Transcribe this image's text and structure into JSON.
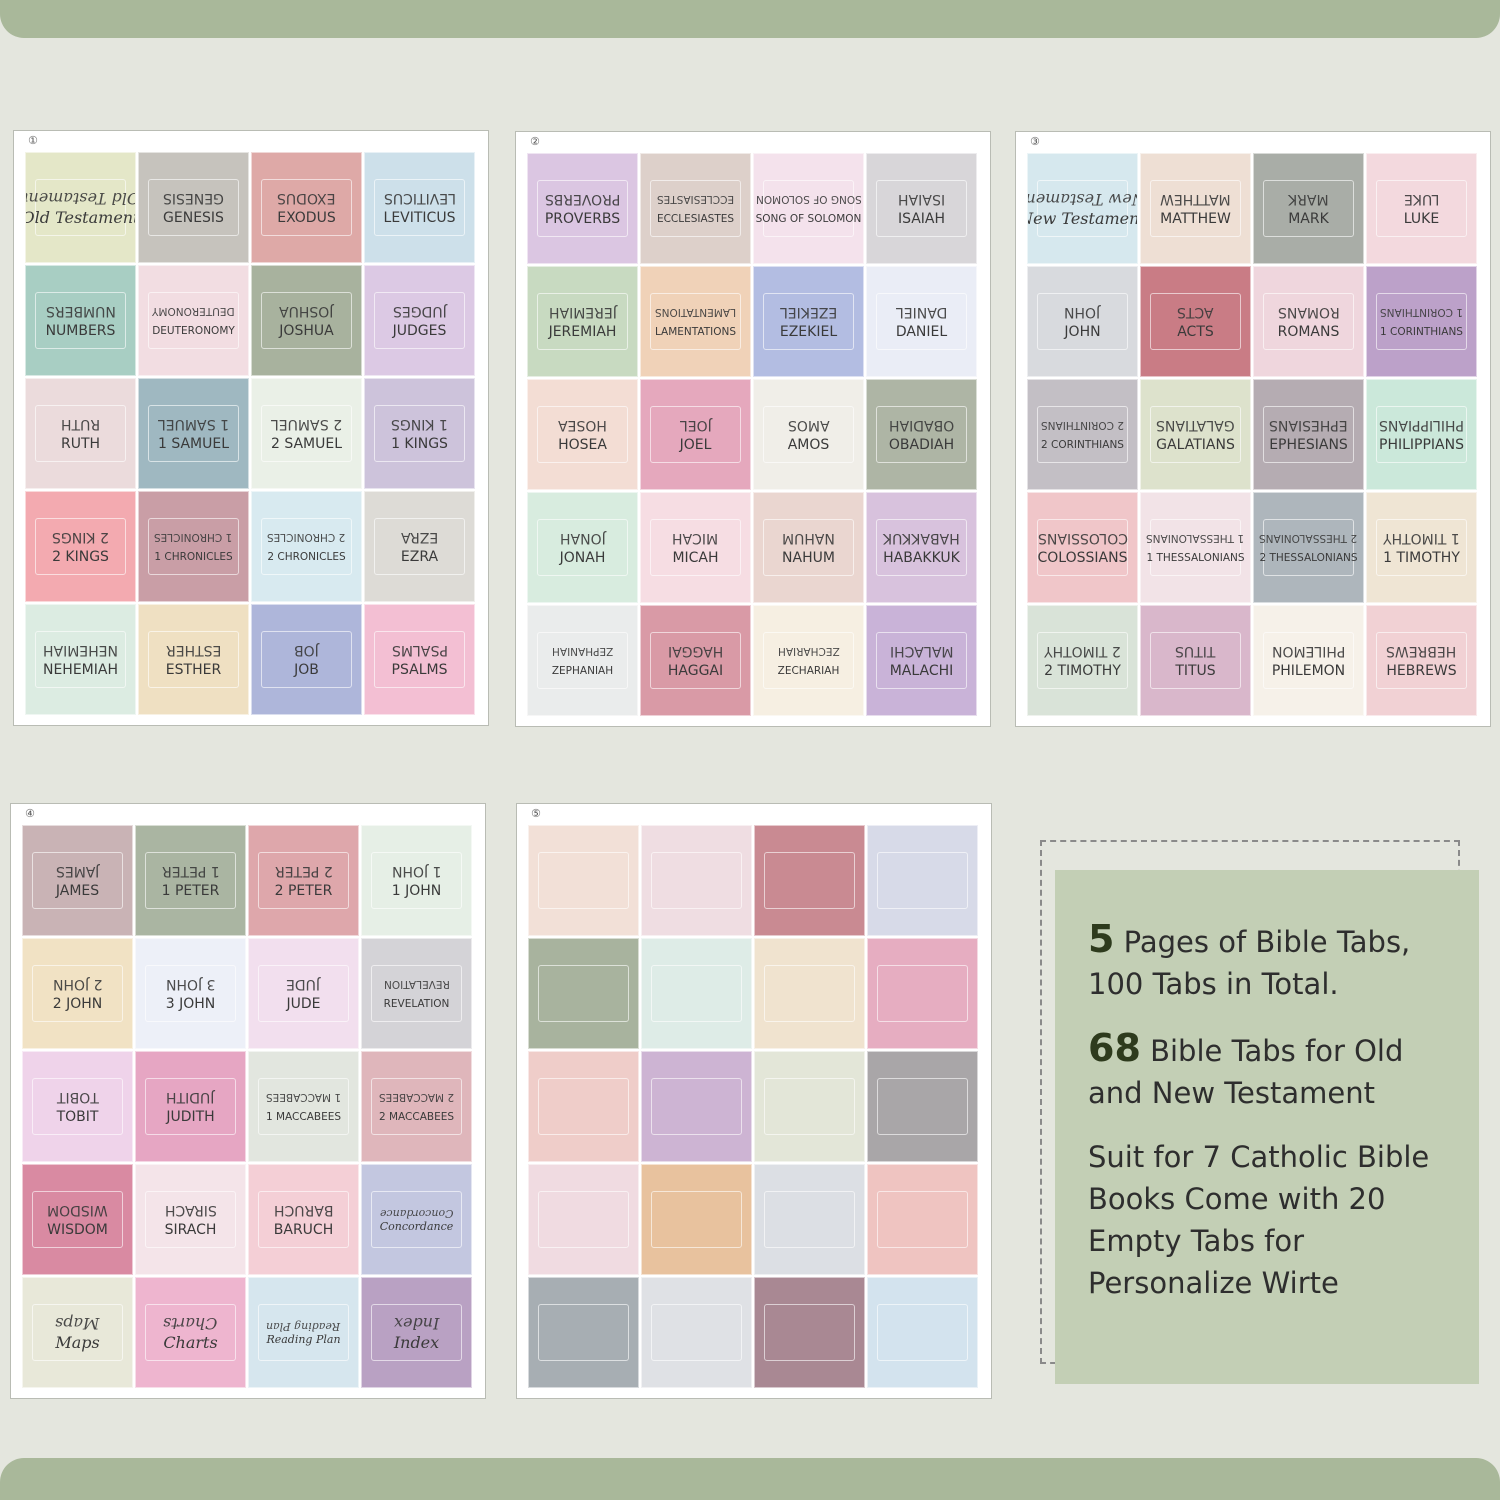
{
  "sheets": [
    {
      "num": "①",
      "tabs": [
        {
          "text": "Old Testament",
          "color": "#e4e7c8",
          "style": "script"
        },
        {
          "text": "GENESIS",
          "color": "#c6c3bd"
        },
        {
          "text": "EXODUS",
          "color": "#dea9a7"
        },
        {
          "text": "LEVITICUS",
          "color": "#cde0ea"
        },
        {
          "text": "NUMBERS",
          "color": "#a8cec3"
        },
        {
          "text": "DEUTERONOMY",
          "color": "#f2dde2",
          "style": "small"
        },
        {
          "text": "JOSHUA",
          "color": "#a8b29e"
        },
        {
          "text": "JUDGES",
          "color": "#dcc9e4"
        },
        {
          "text": "RUTH",
          "color": "#ebdbdc"
        },
        {
          "text": "1 SAMUEL",
          "color": "#9fb8c1"
        },
        {
          "text": "2 SAMUEL",
          "color": "#eaf0e7"
        },
        {
          "text": "1 KINGS",
          "color": "#cdc3db"
        },
        {
          "text": "2 KINGS",
          "color": "#f3aab0"
        },
        {
          "text": "1 CHRONICLES",
          "color": "#c99ea6",
          "style": "small"
        },
        {
          "text": "2 CHRONICLES",
          "color": "#d8eaf0",
          "style": "small"
        },
        {
          "text": "EZRA",
          "color": "#dddbd6"
        },
        {
          "text": "NEHEMIAH",
          "color": "#dcece2"
        },
        {
          "text": "ESTHER",
          "color": "#efe0c2"
        },
        {
          "text": "JOB",
          "color": "#aeb6da"
        },
        {
          "text": "PSALMS",
          "color": "#f3bfd3"
        }
      ]
    },
    {
      "num": "②",
      "tabs": [
        {
          "text": "PROVERBS",
          "color": "#dbc6e2"
        },
        {
          "text": "ECCLESIASTES",
          "color": "#ddd0ca",
          "style": "small"
        },
        {
          "text": "SONG OF SOLOMON",
          "color": "#f4e2ec",
          "style": "small"
        },
        {
          "text": "ISAIAH",
          "color": "#d8d6d9"
        },
        {
          "text": "JEREMIAH",
          "color": "#c8dac1"
        },
        {
          "text": "LAMENTATIONS",
          "color": "#f0d2b8",
          "style": "small"
        },
        {
          "text": "EZEKIEL",
          "color": "#b3bde2"
        },
        {
          "text": "DANIEL",
          "color": "#eaedf6"
        },
        {
          "text": "HOSEA",
          "color": "#f3ddd4"
        },
        {
          "text": "JOEL",
          "color": "#e5a8bd"
        },
        {
          "text": "AMOS",
          "color": "#f0eee8"
        },
        {
          "text": "OBADIAH",
          "color": "#aeb5a5"
        },
        {
          "text": "JONAH",
          "color": "#d8ecdf"
        },
        {
          "text": "MICAH",
          "color": "#f6dde3"
        },
        {
          "text": "NAHUM",
          "color": "#ead6d0"
        },
        {
          "text": "HABAKKUK",
          "color": "#d8c2dd"
        },
        {
          "text": "ZEPHANIAH",
          "color": "#eaecec",
          "style": "small"
        },
        {
          "text": "HAGGAI",
          "color": "#d99aa6"
        },
        {
          "text": "ZECHARIAH",
          "color": "#f6efe2",
          "style": "small"
        },
        {
          "text": "MALACHI",
          "color": "#c9b3d8"
        }
      ]
    },
    {
      "num": "③",
      "tabs": [
        {
          "text": "New Testament",
          "color": "#d6e8ee",
          "style": "script"
        },
        {
          "text": "MATTHEW",
          "color": "#eedfd4"
        },
        {
          "text": "MARK",
          "color": "#a9ada7"
        },
        {
          "text": "LUKE",
          "color": "#f3d9de"
        },
        {
          "text": "JOHN",
          "color": "#d8dade"
        },
        {
          "text": "ACTS",
          "color": "#c97c85"
        },
        {
          "text": "ROMANS",
          "color": "#efd6dd"
        },
        {
          "text": "1 CORINTHIANS",
          "color": "#bca1c9",
          "style": "small"
        },
        {
          "text": "2 CORINTHIANS",
          "color": "#c3bfc5",
          "style": "small"
        },
        {
          "text": "GALATIANS",
          "color": "#dde2cc"
        },
        {
          "text": "EPHESIANS",
          "color": "#b5acb2"
        },
        {
          "text": "PHILIPPIANS",
          "color": "#cbe8da"
        },
        {
          "text": "COLOSSIANS",
          "color": "#f0c6c9"
        },
        {
          "text": "1 THESSALONIANS",
          "color": "#f2e3e7",
          "style": "small"
        },
        {
          "text": "2 THESSALONIANS",
          "color": "#aeb6bc",
          "style": "small"
        },
        {
          "text": "1 TIMOTHY",
          "color": "#efe5d4"
        },
        {
          "text": "2 TIMOTHY",
          "color": "#d9e3d8"
        },
        {
          "text": "TITUS",
          "color": "#d9b7cb"
        },
        {
          "text": "PHILEMON",
          "color": "#f6f1e9"
        },
        {
          "text": "HEBREWS",
          "color": "#f1d1d4"
        }
      ]
    },
    {
      "num": "④",
      "tabs": [
        {
          "text": "JAMES",
          "color": "#c9b3b5"
        },
        {
          "text": "1 PETER",
          "color": "#aab5a2"
        },
        {
          "text": "2 PETER",
          "color": "#dea7ab"
        },
        {
          "text": "1 JOHN",
          "color": "#e6efe6"
        },
        {
          "text": "2 JOHN",
          "color": "#f1e2c4"
        },
        {
          "text": "3 JOHN",
          "color": "#edf0f8"
        },
        {
          "text": "JUDE",
          "color": "#f2dfee"
        },
        {
          "text": "REVELATION",
          "color": "#d4d3d7",
          "style": "small"
        },
        {
          "text": "TOBIT",
          "color": "#efd3ea"
        },
        {
          "text": "JUDITH",
          "color": "#e6a6c3"
        },
        {
          "text": "1 MACCABEES",
          "color": "#e2e6df",
          "style": "small"
        },
        {
          "text": "2 MACCABEES",
          "color": "#dfb6bb",
          "style": "small"
        },
        {
          "text": "WISDOM",
          "color": "#d98aa2"
        },
        {
          "text": "SIRACH",
          "color": "#f4e4e9"
        },
        {
          "text": "BARUCH",
          "color": "#f4cfd6"
        },
        {
          "text": "Concordance",
          "color": "#c3c7e0",
          "style": "script small"
        },
        {
          "text": "Maps",
          "color": "#e8e8d9",
          "style": "script"
        },
        {
          "text": "Charts",
          "color": "#eeb5cf",
          "style": "script"
        },
        {
          "text": "Reading Plan",
          "color": "#d6e6ee",
          "style": "script small"
        },
        {
          "text": "Index",
          "color": "#b9a1c3",
          "style": "script"
        }
      ]
    },
    {
      "num": "⑤",
      "tabs": [
        {
          "text": "",
          "color": "#f2e0d7"
        },
        {
          "text": "",
          "color": "#efdde2"
        },
        {
          "text": "",
          "color": "#c98a92"
        },
        {
          "text": "",
          "color": "#d7dae8"
        },
        {
          "text": "",
          "color": "#a8b39e"
        },
        {
          "text": "",
          "color": "#deece7"
        },
        {
          "text": "",
          "color": "#f0e3cf"
        },
        {
          "text": "",
          "color": "#e6adc1"
        },
        {
          "text": "",
          "color": "#efcdc9"
        },
        {
          "text": "",
          "color": "#cdb4d3"
        },
        {
          "text": "",
          "color": "#e3e6d8"
        },
        {
          "text": "",
          "color": "#a9a6a8"
        },
        {
          "text": "",
          "color": "#f0dbe1"
        },
        {
          "text": "",
          "color": "#e8c29e"
        },
        {
          "text": "",
          "color": "#dcdfe4"
        },
        {
          "text": "",
          "color": "#efc4c1"
        },
        {
          "text": "",
          "color": "#a7aeb3"
        },
        {
          "text": "",
          "color": "#dfe1e5"
        },
        {
          "text": "",
          "color": "#a98893"
        },
        {
          "text": "",
          "color": "#d3e3ee"
        }
      ]
    }
  ],
  "info": {
    "line1_num": "5",
    "line1_text": " Pages of Bible Tabs, 100 Tabs in Total.",
    "line2_num": "68",
    "line2_text": " Bible Tabs for Old and New Testament",
    "line3_text": "Suit for 7 Catholic Bible Books Come with 20 Empty Tabs for Personalize Wirte"
  }
}
